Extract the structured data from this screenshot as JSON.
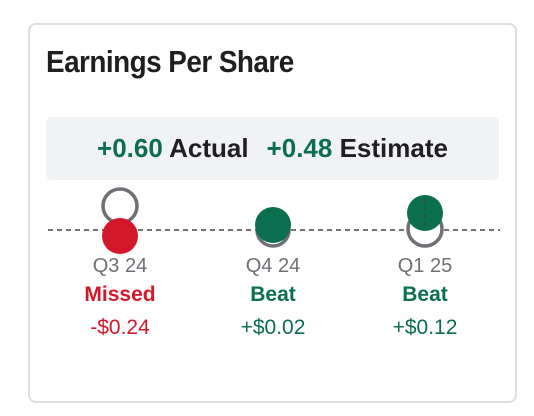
{
  "widget": {
    "title": "Earnings Per Share",
    "summary": {
      "actual_value": "+0.60",
      "actual_label": "Actual",
      "estimate_value": "+0.48",
      "estimate_label": "Estimate"
    },
    "colors": {
      "beat": "#0b6e4f",
      "missed": "#d3182b",
      "estimate_ring": "#6e7075"
    },
    "quarters": [
      {
        "period": "Q3 24",
        "status": "Missed",
        "difference": "-$0.24",
        "type": "missed"
      },
      {
        "period": "Q4 24",
        "status": "Beat",
        "difference": "+$0.02",
        "type": "beat"
      },
      {
        "period": "Q1 25",
        "status": "Beat",
        "difference": "+$0.12",
        "type": "beat"
      }
    ]
  }
}
